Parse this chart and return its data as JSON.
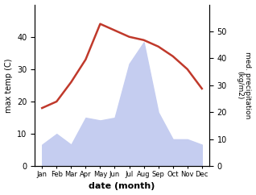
{
  "months": [
    "Jan",
    "Feb",
    "Mar",
    "Apr",
    "May",
    "Jun",
    "Jul",
    "Aug",
    "Sep",
    "Oct",
    "Nov",
    "Dec"
  ],
  "month_indices": [
    1,
    2,
    3,
    4,
    5,
    6,
    7,
    8,
    9,
    10,
    11,
    12
  ],
  "temperature": [
    18,
    20,
    26,
    33,
    44,
    42,
    40,
    39,
    37,
    34,
    30,
    24
  ],
  "precipitation": [
    8,
    12,
    8,
    18,
    17,
    18,
    38,
    46,
    20,
    10,
    10,
    8
  ],
  "temp_color": "#c0392b",
  "precip_fill_color": "#c5cdf0",
  "temp_ylim": [
    0,
    50
  ],
  "precip_ylim": [
    0,
    60
  ],
  "temp_yticks": [
    0,
    10,
    20,
    30,
    40
  ],
  "precip_yticks": [
    0,
    10,
    20,
    30,
    40,
    50
  ],
  "xlabel": "date (month)",
  "ylabel_left": "max temp (C)",
  "ylabel_right": "med. precipitation\n(kg/m2)",
  "figsize": [
    3.18,
    2.42
  ],
  "dpi": 100
}
